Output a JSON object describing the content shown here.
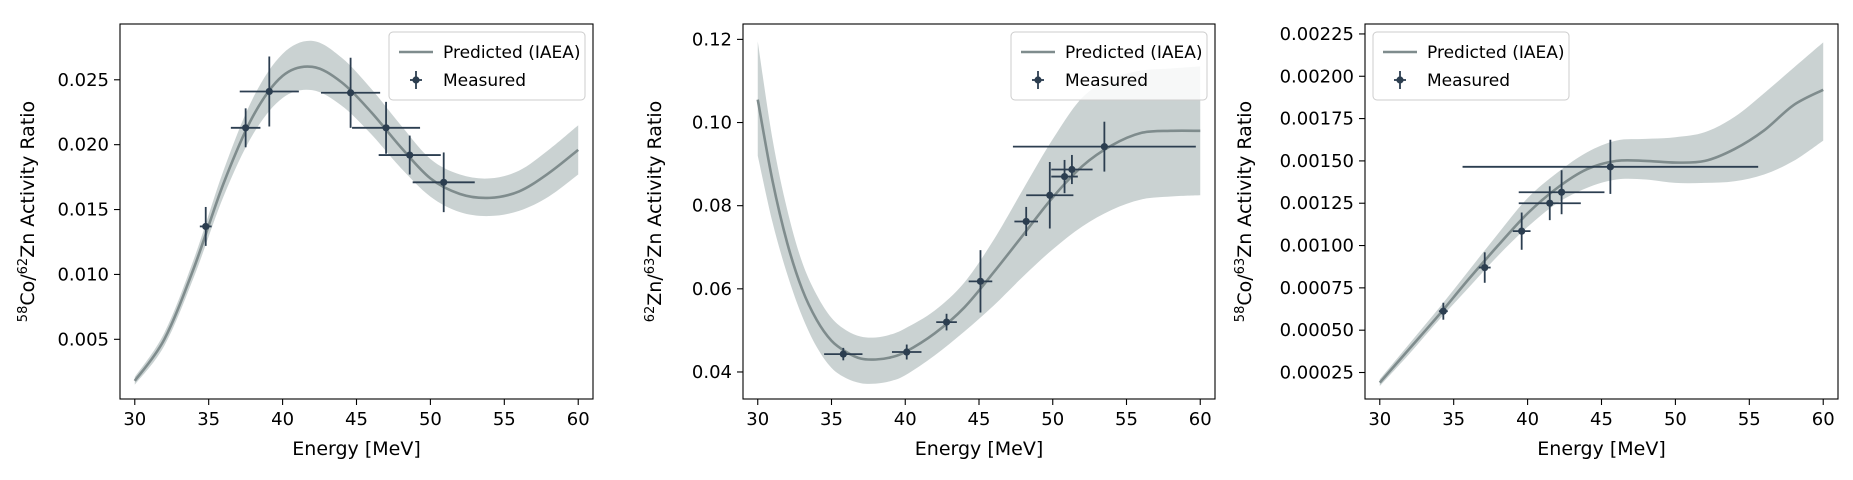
{
  "colors": {
    "band": "#95a5a6",
    "band_opacity": 0.5,
    "predicted_line": "#7f8c8d",
    "measured": "#2c3e50"
  },
  "legend": {
    "predicted": "Predicted (IAEA)",
    "measured": "Measured",
    "placement": [
      "top-right",
      "top-right",
      "top-left"
    ]
  },
  "chart_data": [
    {
      "type": "line",
      "xlabel": "Energy [MeV]",
      "ylabel_parts": [
        {
          "t": "58",
          "sup": true
        },
        {
          "t": "Co/",
          "sup": false
        },
        {
          "t": "62",
          "sup": true
        },
        {
          "t": "Zn Activity Ratio",
          "sup": false
        }
      ],
      "xlim": [
        29,
        61
      ],
      "ylim": [
        0.0004,
        0.0293
      ],
      "xticks": [
        30,
        35,
        40,
        45,
        50,
        55,
        60
      ],
      "yticks": [
        0.005,
        0.01,
        0.015,
        0.02,
        0.025
      ],
      "ytick_labels": [
        "0.005",
        "0.010",
        "0.015",
        "0.020",
        "0.025"
      ],
      "series": [
        {
          "name": "Predicted (IAEA)",
          "kind": "band-line",
          "x": [
            30,
            32,
            34,
            36,
            38,
            40,
            42,
            44,
            46,
            48,
            50,
            52,
            54,
            56,
            58,
            60
          ],
          "y": [
            0.0018,
            0.005,
            0.0105,
            0.017,
            0.0222,
            0.0253,
            0.026,
            0.0248,
            0.0225,
            0.0198,
            0.0174,
            0.0162,
            0.0159,
            0.0164,
            0.0178,
            0.0196
          ],
          "y_low": [
            0.0015,
            0.0045,
            0.0098,
            0.016,
            0.0208,
            0.0236,
            0.0242,
            0.023,
            0.0208,
            0.0182,
            0.016,
            0.0148,
            0.0145,
            0.0149,
            0.016,
            0.0177
          ],
          "y_high": [
            0.0021,
            0.0055,
            0.0112,
            0.018,
            0.0236,
            0.027,
            0.028,
            0.0267,
            0.0243,
            0.0215,
            0.0189,
            0.0177,
            0.0174,
            0.018,
            0.0196,
            0.0215
          ]
        },
        {
          "name": "Measured",
          "kind": "errorbar",
          "points": [
            {
              "x": 34.8,
              "y": 0.0137,
              "xerr": 0.4,
              "yerr": 0.0015
            },
            {
              "x": 37.5,
              "y": 0.0213,
              "xerr": 1.0,
              "yerr": 0.0015
            },
            {
              "x": 39.1,
              "y": 0.0241,
              "xerr": 2.0,
              "yerr": 0.0027
            },
            {
              "x": 44.6,
              "y": 0.024,
              "xerr": 2.0,
              "yerr": 0.0027
            },
            {
              "x": 47.0,
              "y": 0.0213,
              "xerr": 2.3,
              "yerr": 0.002
            },
            {
              "x": 48.6,
              "y": 0.0192,
              "xerr": 2.1,
              "yerr": 0.0015
            },
            {
              "x": 50.9,
              "y": 0.0171,
              "xerr": 2.1,
              "yerr": 0.0023
            }
          ]
        }
      ]
    },
    {
      "type": "line",
      "xlabel": "Energy [MeV]",
      "ylabel_parts": [
        {
          "t": "62",
          "sup": true
        },
        {
          "t": "Zn/",
          "sup": false
        },
        {
          "t": "63",
          "sup": true
        },
        {
          "t": "Zn Activity Ratio",
          "sup": false
        }
      ],
      "xlim": [
        29,
        61
      ],
      "ylim": [
        0.0335,
        0.1237
      ],
      "xticks": [
        30,
        35,
        40,
        45,
        50,
        55,
        60
      ],
      "yticks": [
        0.04,
        0.06,
        0.08,
        0.1,
        0.12
      ],
      "ytick_labels": [
        "0.04",
        "0.06",
        "0.08",
        "0.10",
        "0.12"
      ],
      "series": [
        {
          "name": "Predicted (IAEA)",
          "kind": "band-line",
          "x": [
            30,
            31,
            32,
            33,
            34,
            35,
            36,
            37,
            38,
            39,
            40,
            42,
            44,
            46,
            48,
            50,
            52,
            54,
            56,
            58,
            60
          ],
          "y": [
            0.1055,
            0.086,
            0.071,
            0.06,
            0.0525,
            0.0475,
            0.0448,
            0.0432,
            0.043,
            0.0435,
            0.0448,
            0.0493,
            0.0555,
            0.064,
            0.073,
            0.082,
            0.0895,
            0.0945,
            0.0975,
            0.098,
            0.098
          ],
          "y_low": [
            0.092,
            0.076,
            0.0635,
            0.0535,
            0.046,
            0.041,
            0.0385,
            0.0373,
            0.0372,
            0.0378,
            0.0392,
            0.044,
            0.0497,
            0.056,
            0.063,
            0.0695,
            0.075,
            0.079,
            0.0815,
            0.0822,
            0.0825
          ],
          "y_high": [
            0.1195,
            0.096,
            0.079,
            0.0665,
            0.0585,
            0.053,
            0.05,
            0.0485,
            0.0483,
            0.049,
            0.0505,
            0.0548,
            0.0615,
            0.0718,
            0.084,
            0.096,
            0.106,
            0.1105,
            0.1125,
            0.113,
            0.1135
          ]
        },
        {
          "name": "Measured",
          "kind": "errorbar",
          "points": [
            {
              "x": 35.8,
              "y": 0.0443,
              "xerr": 1.3,
              "yerr": 0.0015
            },
            {
              "x": 40.1,
              "y": 0.0448,
              "xerr": 1.0,
              "yerr": 0.0018
            },
            {
              "x": 42.8,
              "y": 0.052,
              "xerr": 0.7,
              "yerr": 0.002
            },
            {
              "x": 45.1,
              "y": 0.0618,
              "xerr": 0.8,
              "yerr": 0.0075
            },
            {
              "x": 48.2,
              "y": 0.0762,
              "xerr": 0.8,
              "yerr": 0.0035
            },
            {
              "x": 49.8,
              "y": 0.0825,
              "xerr": 1.6,
              "yerr": 0.008
            },
            {
              "x": 50.8,
              "y": 0.087,
              "xerr": 0.9,
              "yerr": 0.004
            },
            {
              "x": 51.3,
              "y": 0.0887,
              "xerr": 1.4,
              "yerr": 0.0035
            },
            {
              "x": 53.5,
              "y": 0.0942,
              "xerr": 6.2,
              "yerr": 0.006
            }
          ]
        }
      ]
    },
    {
      "type": "line",
      "xlabel": "Energy [MeV]",
      "ylabel_parts": [
        {
          "t": "58",
          "sup": true
        },
        {
          "t": "Co/",
          "sup": false
        },
        {
          "t": "63",
          "sup": true
        },
        {
          "t": "Zn Activity Ratio",
          "sup": false
        }
      ],
      "xlim": [
        29,
        61
      ],
      "ylim": [
        9.35e-05,
        0.0023087
      ],
      "xticks": [
        30,
        35,
        40,
        45,
        50,
        55,
        60
      ],
      "yticks": [
        0.00025,
        0.0005,
        0.00075,
        0.001,
        0.00125,
        0.0015,
        0.00175,
        0.002,
        0.00225
      ],
      "ytick_labels": [
        "0.00025",
        "0.00050",
        "0.00075",
        "0.00100",
        "0.00125",
        "0.00150",
        "0.00175",
        "0.00200",
        "0.00225"
      ],
      "series": [
        {
          "name": "Predicted (IAEA)",
          "kind": "band-line",
          "x": [
            30,
            32,
            34,
            36,
            38,
            40,
            42,
            44,
            46,
            48,
            50,
            52,
            54,
            56,
            58,
            60
          ],
          "y": [
            0.00019,
            0.00039,
            0.00059,
            0.0008,
            0.001,
            0.00119,
            0.00134,
            0.00145,
            0.0015,
            0.0015,
            0.00149,
            0.0015,
            0.00157,
            0.00168,
            0.00183,
            0.00192
          ],
          "y_low": [
            0.00017,
            0.00036,
            0.00056,
            0.00075,
            0.00094,
            0.00111,
            0.00125,
            0.00134,
            0.00139,
            0.00139,
            0.00137,
            0.00137,
            0.00138,
            0.00142,
            0.0015,
            0.00162
          ],
          "y_high": [
            0.00021,
            0.00042,
            0.00063,
            0.00085,
            0.00107,
            0.00128,
            0.00143,
            0.00155,
            0.00162,
            0.00163,
            0.00164,
            0.00167,
            0.00176,
            0.0019,
            0.00205,
            0.0022
          ]
        },
        {
          "name": "Measured",
          "kind": "errorbar",
          "points": [
            {
              "x": 34.3,
              "y": 0.000612,
              "xerr": 0.3,
              "yerr": 5e-05
            },
            {
              "x": 37.1,
              "y": 0.00087,
              "xerr": 0.4,
              "yerr": 9e-05
            },
            {
              "x": 39.6,
              "y": 0.001085,
              "xerr": 0.6,
              "yerr": 0.00011
            },
            {
              "x": 41.5,
              "y": 0.00125,
              "xerr": 2.1,
              "yerr": 0.0001
            },
            {
              "x": 42.3,
              "y": 0.001315,
              "xerr": 2.9,
              "yerr": 0.00013
            },
            {
              "x": 45.6,
              "y": 0.001465,
              "xerr": 10.0,
              "yerr": 0.00016
            }
          ]
        }
      ]
    }
  ]
}
